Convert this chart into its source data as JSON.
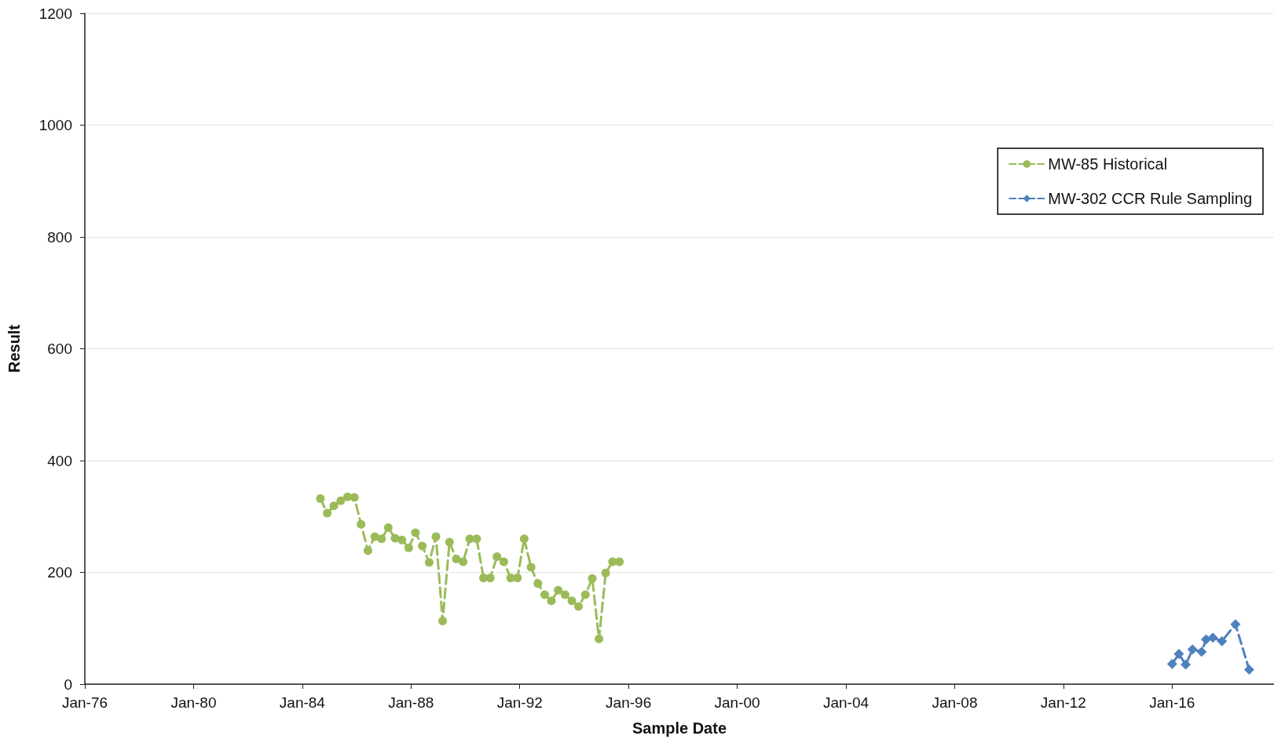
{
  "chart_data": {
    "type": "line",
    "xlabel": "Sample Date",
    "ylabel": "Result",
    "xlim": [
      "1976-01",
      "2019-10"
    ],
    "xticks": [
      {
        "value": "1976-01",
        "label": "Jan-76"
      },
      {
        "value": "1980-01",
        "label": "Jan-80"
      },
      {
        "value": "1984-01",
        "label": "Jan-84"
      },
      {
        "value": "1988-01",
        "label": "Jan-88"
      },
      {
        "value": "1992-01",
        "label": "Jan-92"
      },
      {
        "value": "1996-01",
        "label": "Jan-96"
      },
      {
        "value": "2000-01",
        "label": "Jan-00"
      },
      {
        "value": "2004-01",
        "label": "Jan-04"
      },
      {
        "value": "2008-01",
        "label": "Jan-08"
      },
      {
        "value": "2012-01",
        "label": "Jan-12"
      },
      {
        "value": "2016-01",
        "label": "Jan-16"
      }
    ],
    "ylim": [
      0,
      1200
    ],
    "yticks": [
      0,
      200,
      400,
      600,
      800,
      1000,
      1200
    ],
    "grid": "y",
    "legend": "top right",
    "line_style": "dashed",
    "series": [
      {
        "name": "MW-85 Historical",
        "color": "#9bbb59",
        "marker": "circle",
        "x": [
          "1984-09",
          "1984-12",
          "1985-03",
          "1985-06",
          "1985-09",
          "1985-12",
          "1986-03",
          "1986-06",
          "1986-09",
          "1986-12",
          "1987-03",
          "1987-06",
          "1987-09",
          "1987-12",
          "1988-03",
          "1988-06",
          "1988-09",
          "1988-12",
          "1989-03",
          "1989-06",
          "1989-09",
          "1989-12",
          "1990-03",
          "1990-06",
          "1990-09",
          "1990-12",
          "1991-03",
          "1991-06",
          "1991-09",
          "1991-12",
          "1992-03",
          "1992-06",
          "1992-09",
          "1992-12",
          "1993-03",
          "1993-06",
          "1993-09",
          "1993-12",
          "1994-03",
          "1994-06",
          "1994-09",
          "1994-12",
          "1995-03",
          "1995-06",
          "1995-09"
        ],
        "values": [
          332,
          306,
          319,
          328,
          335,
          334,
          286,
          239,
          264,
          260,
          280,
          261,
          258,
          244,
          271,
          247,
          218,
          264,
          113,
          254,
          224,
          219,
          260,
          260,
          190,
          190,
          228,
          219,
          190,
          190,
          260,
          209,
          180,
          160,
          149,
          168,
          160,
          149,
          139,
          160,
          189,
          81,
          199,
          219,
          219
        ]
      },
      {
        "name": "MW-302 CCR Rule Sampling",
        "color": "#4f81bd",
        "marker": "diamond",
        "x": [
          "2016-01",
          "2016-04",
          "2016-07",
          "2016-10",
          "2017-02",
          "2017-04",
          "2017-07",
          "2017-11",
          "2018-05",
          "2018-11"
        ],
        "values": [
          36,
          54,
          35,
          62,
          58,
          80,
          83,
          77,
          107,
          26
        ]
      }
    ]
  }
}
